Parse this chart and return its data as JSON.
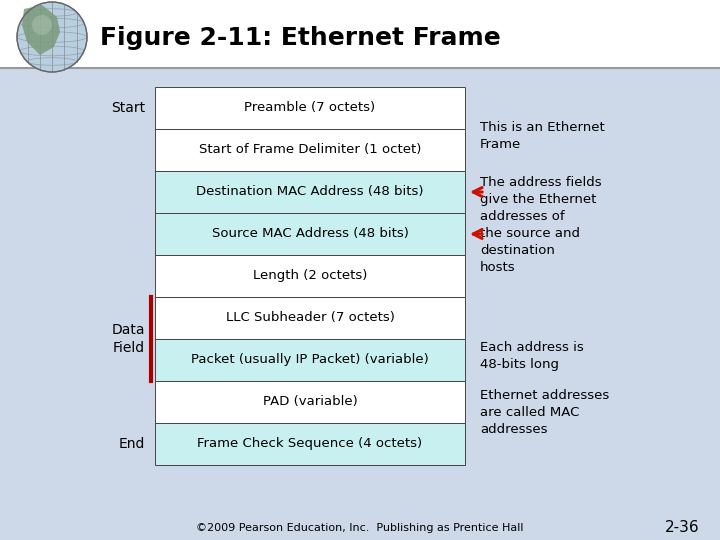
{
  "title": "Figure 2-11: Ethernet Frame",
  "slide_bg": "#cdd8e8",
  "table_bg_white": "#ffffff",
  "table_bg_cyan": "#c8f0f0",
  "title_bar_color": "#ffffff",
  "rows": [
    {
      "label": "Preamble (7 octets)",
      "bg": "#ffffff"
    },
    {
      "label": "Start of Frame Delimiter (1 octet)",
      "bg": "#ffffff"
    },
    {
      "label": "Destination MAC Address (48 bits)",
      "bg": "#c8f0f0"
    },
    {
      "label": "Source MAC Address (48 bits)",
      "bg": "#c8f0f0"
    },
    {
      "label": "Length (2 octets)",
      "bg": "#ffffff"
    },
    {
      "label": "LLC Subheader (7 octets)",
      "bg": "#ffffff"
    },
    {
      "label": "Packet (usually IP Packet) (variable)",
      "bg": "#c8f0f0"
    },
    {
      "label": "PAD (variable)",
      "bg": "#ffffff"
    },
    {
      "label": "Frame Check Sequence (4 octets)",
      "bg": "#c8f0f0"
    }
  ],
  "footer": "©2009 Pearson Education, Inc.  Publishing as Prentice Hall",
  "slide_number": "2-36",
  "title_line_color": "#999999",
  "border_color": "#444444",
  "data_field_line_color": "#aa0000",
  "arrow_color": "#cc1100",
  "ann1_text": "This is an Ethernet\nFrame",
  "ann2_text": "The address fields\ngive the Ethernet\naddresses of\nthe source and\ndestination\nhosts",
  "ann3_text": "Each address is\n48-bits long",
  "ann4_text": "Ethernet addresses\nare called MAC\naddresses"
}
